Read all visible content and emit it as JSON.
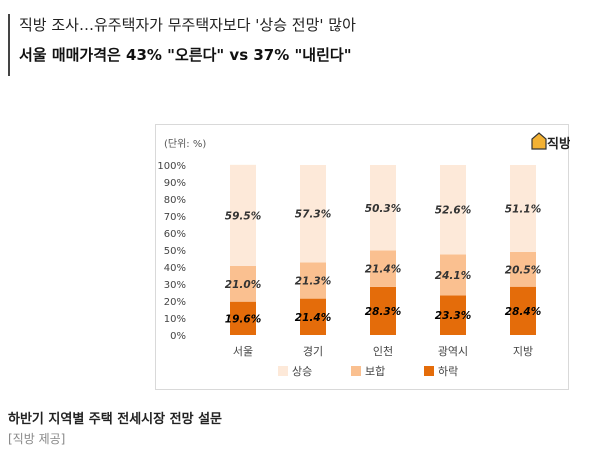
{
  "headline": {
    "line1": "직방 조사…유주택자가 무주택자보다 '상승 전망' 많아",
    "line2": "서울 매매가격은 43% \"오른다\" vs 37% \"내린다\""
  },
  "caption": "하반기 지역별 주택 전세시장 전망 설문",
  "credit": "[직방 제공]",
  "chart_data": {
    "type": "bar",
    "stacked": true,
    "unit_label": "(단위: %)",
    "brand_logo_text": "직방",
    "categories": [
      "서울",
      "경기",
      "인천",
      "광역시",
      "지방"
    ],
    "series": [
      {
        "name": "하락",
        "color": "#e46c0a",
        "values": [
          19.6,
          21.4,
          28.3,
          23.3,
          28.4
        ],
        "labels": [
          "19.6%",
          "21.4%",
          "28.3%",
          "23.3%",
          "28.4%"
        ]
      },
      {
        "name": "보합",
        "color": "#fac090",
        "values": [
          21.0,
          21.3,
          21.4,
          24.1,
          20.5
        ],
        "labels": [
          "21.0%",
          "21.3%",
          "21.4%",
          "24.1%",
          "20.5%"
        ]
      },
      {
        "name": "상승",
        "color": "#fde9d9",
        "values": [
          59.5,
          57.3,
          50.3,
          52.6,
          51.1
        ],
        "labels": [
          "59.5%",
          "57.3%",
          "50.3%",
          "52.6%",
          "51.1%"
        ]
      }
    ],
    "legend_order": [
      "상승",
      "보합",
      "하락"
    ],
    "legend_position": "bottom",
    "ylim": [
      0,
      100
    ],
    "yticks": [
      "0%",
      "10%",
      "20%",
      "30%",
      "40%",
      "50%",
      "60%",
      "70%",
      "80%",
      "90%",
      "100%"
    ],
    "grid": false
  }
}
